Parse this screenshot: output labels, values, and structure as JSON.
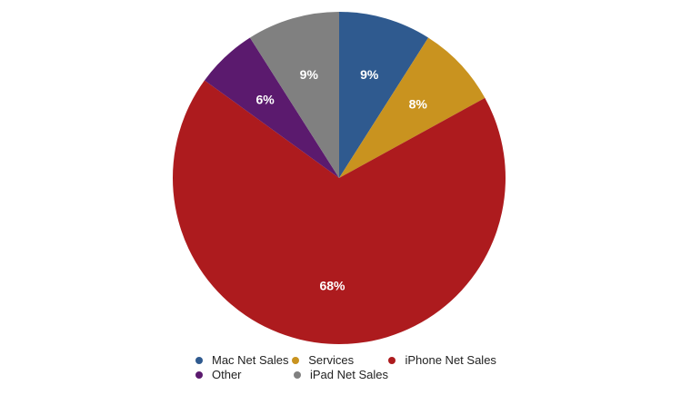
{
  "chart_data": {
    "type": "pie",
    "title": "",
    "slices": [
      {
        "name": "Mac Net Sales",
        "value": 9,
        "label": "9%",
        "color": "#2f5a8f"
      },
      {
        "name": "Services",
        "value": 8,
        "label": "8%",
        "color": "#c9931f"
      },
      {
        "name": "iPhone Net Sales",
        "value": 68,
        "label": "68%",
        "color": "#ad1b1e"
      },
      {
        "name": "Other",
        "value": 6,
        "label": "6%",
        "color": "#5b1a6e"
      },
      {
        "name": "iPad Net Sales",
        "value": 9,
        "label": "9%",
        "color": "#808080"
      }
    ],
    "start_angle_deg": 0,
    "direction": "clockwise",
    "legend_position": "bottom"
  }
}
